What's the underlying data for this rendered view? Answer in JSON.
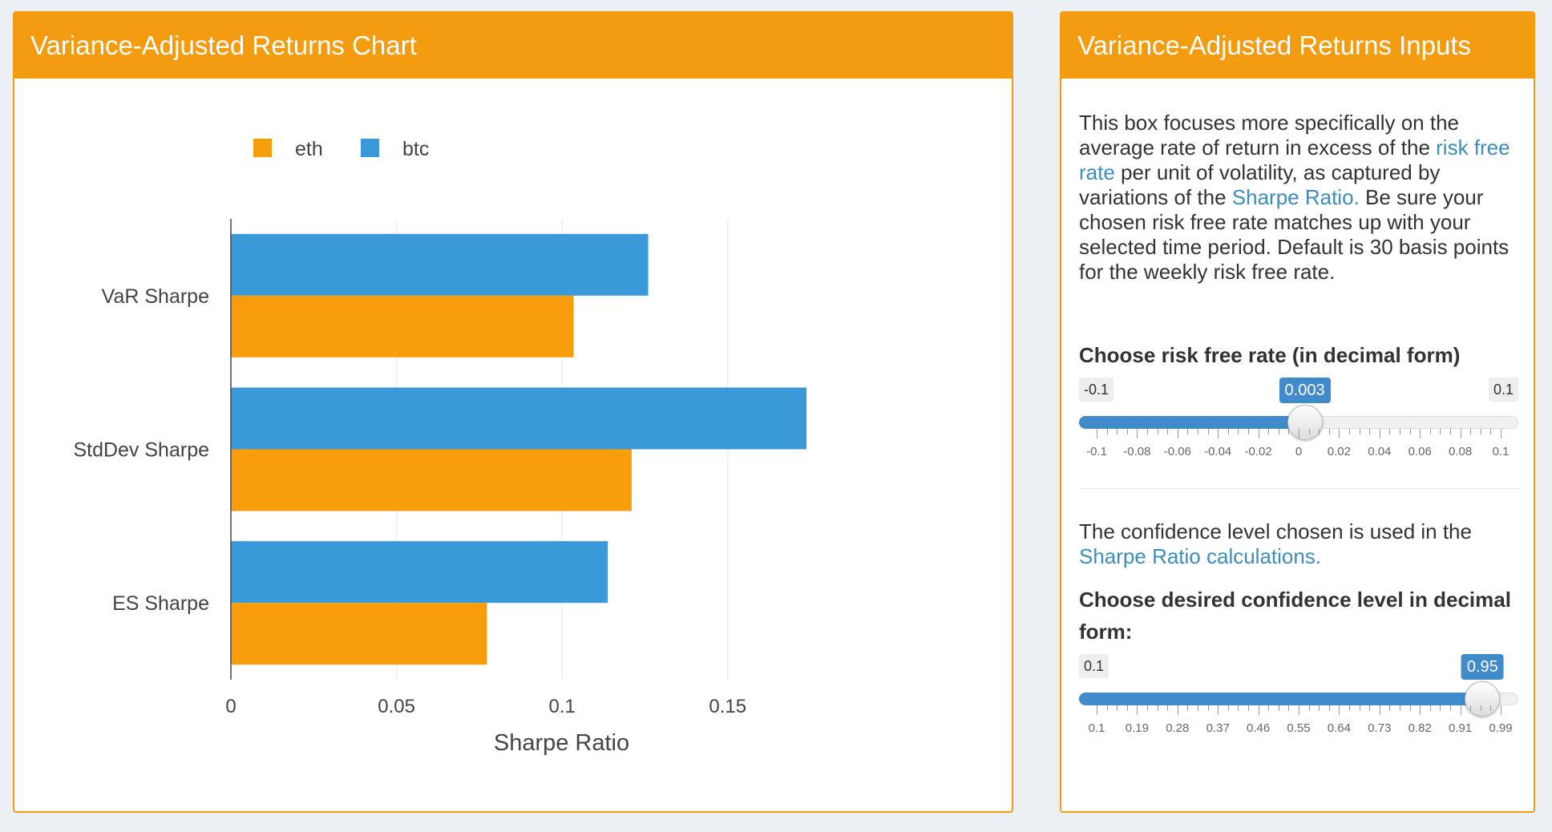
{
  "chart_box": {
    "title": "Variance-Adjusted Returns Chart"
  },
  "inputs_box": {
    "title": "Variance-Adjusted Returns Inputs",
    "intro": {
      "t1": "This box focuses more specifically on the average rate of return in excess of the ",
      "link1": "risk free rate",
      "t2": " per unit of volatility, as captured by variations of the ",
      "link2": "Sharpe Ratio.",
      "t3": " Be sure your chosen risk free rate matches up with your selected time period. Default is 30 basis points for the weekly risk free rate."
    },
    "rf_slider": {
      "label": "Choose risk free rate (in decimal form)",
      "min": -0.1,
      "max": 0.1,
      "value": 0.003,
      "min_label": "-0.1",
      "max_label": "0.1",
      "value_label": "0.003",
      "tick_labels": [
        "-0.1",
        "-0.08",
        "-0.06",
        "-0.04",
        "-0.02",
        "0",
        "0.02",
        "0.04",
        "0.06",
        "0.08",
        "0.1"
      ]
    },
    "confidence_text": {
      "t1": "The confidence level chosen is used in the ",
      "link": "Sharpe Ratio calculations."
    },
    "conf_slider": {
      "label": "Choose desired confidence level in decimal form:",
      "min": 0.1,
      "max": 0.99,
      "value": 0.95,
      "min_label": "0.1",
      "value_label": "0.95",
      "tick_labels": [
        "0.1",
        "0.19",
        "0.28",
        "0.37",
        "0.46",
        "0.55",
        "0.64",
        "0.73",
        "0.82",
        "0.91",
        "0.99"
      ]
    }
  },
  "colors": {
    "accent": "#f39c12",
    "eth": "#f89e0c",
    "btc": "#3a9ad9",
    "slider": "#428bca"
  },
  "chart_data": {
    "type": "bar",
    "orientation": "horizontal",
    "categories": [
      "VaR Sharpe",
      "StdDev Sharpe",
      "ES Sharpe"
    ],
    "series": [
      {
        "name": "eth",
        "values": [
          0.1035,
          0.121,
          0.0773
        ]
      },
      {
        "name": "btc",
        "values": [
          0.126,
          0.1738,
          0.1138
        ]
      }
    ],
    "xlabel": "Sharpe Ratio",
    "ylabel": "",
    "xlim": [
      0,
      0.18
    ],
    "x_ticks": [
      0,
      0.05,
      0.1,
      0.15
    ],
    "x_tick_labels": [
      "0",
      "0.05",
      "0.1",
      "0.15"
    ],
    "legend": "top-left",
    "grid": true
  }
}
